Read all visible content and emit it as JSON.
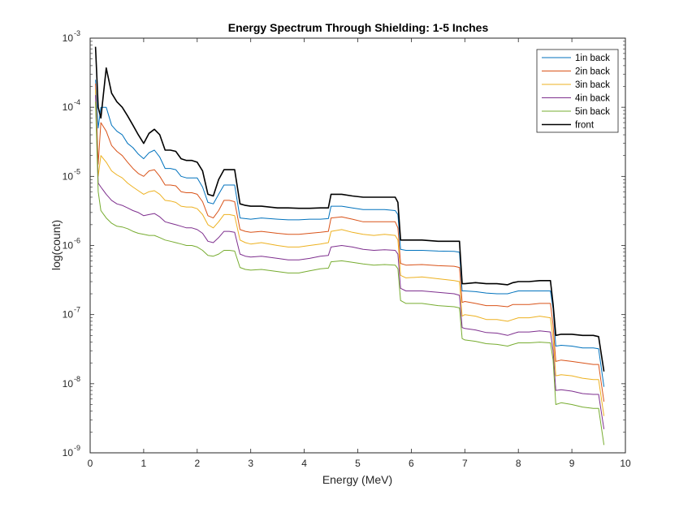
{
  "chart_data": {
    "type": "line",
    "title": "Energy Spectrum Through Shielding: 1-5 Inches",
    "xlabel": "Energy (MeV)",
    "ylabel": "log(count)",
    "xlim": [
      0,
      10
    ],
    "ylim": [
      1e-09,
      0.001
    ],
    "yscale": "log",
    "grid": false,
    "legend_position": "top-right",
    "x_ticks": [
      "0",
      "1",
      "2",
      "3",
      "4",
      "5",
      "6",
      "7",
      "8",
      "9",
      "10"
    ],
    "y_ticks": [
      {
        "base": "10",
        "exp": "-9"
      },
      {
        "base": "10",
        "exp": "-8"
      },
      {
        "base": "10",
        "exp": "-7"
      },
      {
        "base": "10",
        "exp": "-6"
      },
      {
        "base": "10",
        "exp": "-5"
      },
      {
        "base": "10",
        "exp": "-4"
      },
      {
        "base": "10",
        "exp": "-3"
      }
    ],
    "series": [
      {
        "name": "1in back",
        "color": "#0072BD",
        "x": [
          0.1,
          0.15,
          0.2,
          0.3,
          0.4,
          0.5,
          0.6,
          0.7,
          0.8,
          0.9,
          1.0,
          1.1,
          1.2,
          1.3,
          1.4,
          1.5,
          1.6,
          1.7,
          1.8,
          1.9,
          2.0,
          2.1,
          2.2,
          2.3,
          2.4,
          2.5,
          2.6,
          2.7,
          2.8,
          2.9,
          3.0,
          3.2,
          3.5,
          3.7,
          3.9,
          4.1,
          4.3,
          4.45,
          4.5,
          4.7,
          4.9,
          5.1,
          5.3,
          5.5,
          5.7,
          5.75,
          5.8,
          5.9,
          6.2,
          6.5,
          6.8,
          6.9,
          6.95,
          7.0,
          7.2,
          7.4,
          7.6,
          7.8,
          7.9,
          8.0,
          8.2,
          8.4,
          8.6,
          8.65,
          8.7,
          8.8,
          9.0,
          9.2,
          9.4,
          9.5,
          9.6
        ],
        "y": [
          0.00025,
          5e-05,
          0.0001,
          0.0001,
          5.5e-05,
          4.5e-05,
          4e-05,
          3e-05,
          2.6e-05,
          2.1e-05,
          1.8e-05,
          2.2e-05,
          2.4e-05,
          1.9e-05,
          1.3e-05,
          1.3e-05,
          1.25e-05,
          1e-05,
          9.5e-06,
          9.5e-06,
          9.5e-06,
          7e-06,
          4.2e-06,
          4e-06,
          5.5e-06,
          7.5e-06,
          7.5e-06,
          7.5e-06,
          2.5e-06,
          2.45e-06,
          2.4e-06,
          2.5e-06,
          2.4e-06,
          2.35e-06,
          2.35e-06,
          2.4e-06,
          2.4e-06,
          2.45e-06,
          3.7e-06,
          3.7e-06,
          3.5e-06,
          3.3e-06,
          3.3e-06,
          3.3e-06,
          3.2e-06,
          2.8e-06,
          8.8e-07,
          8.5e-07,
          8.5e-07,
          8.3e-07,
          8.2e-07,
          8e-07,
          2.2e-07,
          2.2e-07,
          2.15e-07,
          2.05e-07,
          2e-07,
          2e-07,
          2.1e-07,
          2.2e-07,
          2.2e-07,
          2.2e-07,
          2.2e-07,
          1.2e-07,
          3.5e-08,
          3.6e-08,
          3.5e-08,
          3.3e-08,
          3.3e-08,
          3.2e-08,
          9e-09
        ]
      },
      {
        "name": "2in back",
        "color": "#D95319",
        "x": [
          0.1,
          0.15,
          0.2,
          0.3,
          0.4,
          0.5,
          0.6,
          0.7,
          0.8,
          0.9,
          1.0,
          1.1,
          1.2,
          1.3,
          1.4,
          1.5,
          1.6,
          1.7,
          1.8,
          1.9,
          2.0,
          2.1,
          2.2,
          2.3,
          2.4,
          2.5,
          2.6,
          2.7,
          2.8,
          2.9,
          3.0,
          3.2,
          3.5,
          3.7,
          3.9,
          4.1,
          4.3,
          4.45,
          4.5,
          4.7,
          4.9,
          5.1,
          5.3,
          5.5,
          5.7,
          5.75,
          5.8,
          5.9,
          6.2,
          6.5,
          6.8,
          6.9,
          6.95,
          7.0,
          7.2,
          7.4,
          7.6,
          7.8,
          7.9,
          8.0,
          8.2,
          8.4,
          8.6,
          8.65,
          8.7,
          8.8,
          9.0,
          9.2,
          9.4,
          9.5,
          9.6
        ],
        "y": [
          0.00022,
          1.5e-05,
          6e-05,
          4.5e-05,
          2.8e-05,
          2.3e-05,
          2e-05,
          1.6e-05,
          1.3e-05,
          1.1e-05,
          1e-05,
          1.2e-05,
          1.25e-05,
          1e-05,
          7.5e-06,
          7.5e-06,
          7.3e-06,
          6e-06,
          5.8e-06,
          5.8e-06,
          5.5e-06,
          4.3e-06,
          2.7e-06,
          2.5e-06,
          3.2e-06,
          4.5e-06,
          4.5e-06,
          4.3e-06,
          1.7e-06,
          1.6e-06,
          1.55e-06,
          1.6e-06,
          1.5e-06,
          1.45e-06,
          1.45e-06,
          1.5e-06,
          1.55e-06,
          1.6e-06,
          2.5e-06,
          2.6e-06,
          2.4e-06,
          2.2e-06,
          2.2e-06,
          2.2e-06,
          2.2e-06,
          1.8e-06,
          5.5e-07,
          5.2e-07,
          5.3e-07,
          5.1e-07,
          5e-07,
          4.8e-07,
          1.5e-07,
          1.55e-07,
          1.45e-07,
          1.35e-07,
          1.35e-07,
          1.3e-07,
          1.4e-07,
          1.4e-07,
          1.4e-07,
          1.45e-07,
          1.45e-07,
          7e-08,
          2.1e-08,
          2.2e-08,
          2.1e-08,
          2e-08,
          1.9e-08,
          1.9e-08,
          5.5e-09
        ]
      },
      {
        "name": "3in back",
        "color": "#EDB120",
        "x": [
          0.1,
          0.15,
          0.2,
          0.3,
          0.4,
          0.5,
          0.6,
          0.7,
          0.8,
          0.9,
          1.0,
          1.1,
          1.2,
          1.3,
          1.4,
          1.5,
          1.6,
          1.7,
          1.8,
          1.9,
          2.0,
          2.1,
          2.2,
          2.3,
          2.4,
          2.5,
          2.6,
          2.7,
          2.8,
          2.9,
          3.0,
          3.2,
          3.5,
          3.7,
          3.9,
          4.1,
          4.3,
          4.45,
          4.5,
          4.7,
          4.9,
          5.1,
          5.3,
          5.5,
          5.7,
          5.75,
          5.8,
          5.9,
          6.2,
          6.5,
          6.8,
          6.9,
          6.95,
          7.0,
          7.2,
          7.4,
          7.6,
          7.8,
          7.9,
          8.0,
          8.2,
          8.4,
          8.6,
          8.65,
          8.7,
          8.8,
          9.0,
          9.2,
          9.4,
          9.5,
          9.6
        ],
        "y": [
          0.00018,
          1e-05,
          2e-05,
          1.6e-05,
          1.2e-05,
          1.05e-05,
          9.5e-06,
          8e-06,
          7e-06,
          6.2e-06,
          5.5e-06,
          6e-06,
          6.2e-06,
          5.5e-06,
          4.5e-06,
          4.4e-06,
          4.2e-06,
          3.7e-06,
          3.6e-06,
          3.6e-06,
          3.4e-06,
          2.8e-06,
          2e-06,
          1.8e-06,
          2.2e-06,
          2.8e-06,
          2.8e-06,
          2.7e-06,
          1.2e-06,
          1.1e-06,
          1.05e-06,
          1.1e-06,
          1e-06,
          9.5e-07,
          9.5e-07,
          1e-06,
          1.05e-06,
          1.1e-06,
          1.6e-06,
          1.7e-06,
          1.55e-06,
          1.45e-06,
          1.4e-06,
          1.45e-06,
          1.4e-06,
          1.2e-06,
          3.7e-07,
          3.4e-07,
          3.5e-07,
          3.3e-07,
          3.1e-07,
          3e-07,
          9.5e-08,
          1e-07,
          9.5e-08,
          8.5e-08,
          8.5e-08,
          8e-08,
          8.5e-08,
          9e-08,
          9e-08,
          9.5e-08,
          9e-08,
          4.5e-08,
          1.3e-08,
          1.35e-08,
          1.3e-08,
          1.2e-08,
          1.15e-08,
          1.15e-08,
          3.4e-09
        ]
      },
      {
        "name": "4in back",
        "color": "#7E2F8E",
        "x": [
          0.1,
          0.15,
          0.2,
          0.3,
          0.4,
          0.5,
          0.6,
          0.7,
          0.8,
          0.9,
          1.0,
          1.1,
          1.2,
          1.3,
          1.4,
          1.5,
          1.6,
          1.7,
          1.8,
          1.9,
          2.0,
          2.1,
          2.2,
          2.3,
          2.4,
          2.5,
          2.6,
          2.7,
          2.8,
          2.9,
          3.0,
          3.2,
          3.5,
          3.7,
          3.9,
          4.1,
          4.3,
          4.45,
          4.5,
          4.7,
          4.9,
          5.1,
          5.3,
          5.5,
          5.7,
          5.75,
          5.8,
          5.9,
          6.2,
          6.5,
          6.8,
          6.9,
          6.95,
          7.0,
          7.2,
          7.4,
          7.6,
          7.8,
          7.9,
          8.0,
          8.2,
          8.4,
          8.6,
          8.65,
          8.7,
          8.8,
          9.0,
          9.2,
          9.4,
          9.5,
          9.6
        ],
        "y": [
          0.00015,
          8e-06,
          7e-06,
          5.5e-06,
          4.5e-06,
          4e-06,
          3.8e-06,
          3.5e-06,
          3.2e-06,
          3e-06,
          2.7e-06,
          2.8e-06,
          2.9e-06,
          2.6e-06,
          2.2e-06,
          2.1e-06,
          2e-06,
          1.9e-06,
          1.8e-06,
          1.8e-06,
          1.7e-06,
          1.5e-06,
          1.15e-06,
          1.1e-06,
          1.3e-06,
          1.6e-06,
          1.6e-06,
          1.55e-06,
          7.5e-07,
          7e-07,
          6.8e-07,
          7e-07,
          6.5e-07,
          6.2e-07,
          6.2e-07,
          6.5e-07,
          7e-07,
          7.2e-07,
          9.5e-07,
          1e-06,
          9.5e-07,
          8.8e-07,
          8.5e-07,
          8.7e-07,
          8.5e-07,
          7.5e-07,
          2.4e-07,
          2.2e-07,
          2.2e-07,
          2.1e-07,
          2e-07,
          1.9e-07,
          6.5e-08,
          6.3e-08,
          6e-08,
          5.5e-08,
          5.4e-08,
          5e-08,
          5.3e-08,
          5.6e-08,
          5.6e-08,
          5.8e-08,
          5.6e-08,
          3e-08,
          8e-09,
          8.2e-09,
          7.8e-09,
          7.2e-09,
          7e-09,
          7e-09,
          2.2e-09
        ]
      },
      {
        "name": "5in back",
        "color": "#77AC30",
        "x": [
          0.1,
          0.15,
          0.2,
          0.3,
          0.4,
          0.5,
          0.6,
          0.7,
          0.8,
          0.9,
          1.0,
          1.1,
          1.2,
          1.3,
          1.4,
          1.5,
          1.6,
          1.7,
          1.8,
          1.9,
          2.0,
          2.1,
          2.2,
          2.3,
          2.4,
          2.5,
          2.6,
          2.7,
          2.8,
          2.9,
          3.0,
          3.2,
          3.5,
          3.7,
          3.9,
          4.1,
          4.3,
          4.45,
          4.5,
          4.7,
          4.9,
          5.1,
          5.3,
          5.5,
          5.7,
          5.75,
          5.8,
          5.9,
          6.2,
          6.5,
          6.8,
          6.9,
          6.95,
          7.0,
          7.2,
          7.4,
          7.6,
          7.8,
          7.9,
          8.0,
          8.2,
          8.4,
          8.6,
          8.65,
          8.7,
          8.8,
          9.0,
          9.2,
          9.4,
          9.5,
          9.6
        ],
        "y": [
          0.00012,
          6e-06,
          3.2e-06,
          2.5e-06,
          2.1e-06,
          1.9e-06,
          1.85e-06,
          1.75e-06,
          1.6e-06,
          1.5e-06,
          1.45e-06,
          1.4e-06,
          1.4e-06,
          1.3e-06,
          1.2e-06,
          1.15e-06,
          1.1e-06,
          1.05e-06,
          1e-06,
          1e-06,
          9.5e-07,
          8.5e-07,
          7.2e-07,
          7e-07,
          7.5e-07,
          8.5e-07,
          8.5e-07,
          8.3e-07,
          4.8e-07,
          4.5e-07,
          4.4e-07,
          4.5e-07,
          4.2e-07,
          4e-07,
          4e-07,
          4.3e-07,
          4.6e-07,
          4.7e-07,
          5.8e-07,
          6e-07,
          5.7e-07,
          5.4e-07,
          5.2e-07,
          5.3e-07,
          5.2e-07,
          4.6e-07,
          1.6e-07,
          1.45e-07,
          1.45e-07,
          1.35e-07,
          1.3e-07,
          1.25e-07,
          4.5e-08,
          4.3e-08,
          4.1e-08,
          3.8e-08,
          3.7e-08,
          3.5e-08,
          3.7e-08,
          3.9e-08,
          3.9e-08,
          4e-08,
          3.9e-08,
          2.2e-08,
          5e-09,
          5.3e-09,
          5e-09,
          4.6e-09,
          4.4e-09,
          4.4e-09,
          1.3e-09
        ]
      },
      {
        "name": "front",
        "color": "#000000",
        "x": [
          0.1,
          0.15,
          0.2,
          0.3,
          0.4,
          0.5,
          0.6,
          0.7,
          0.8,
          0.9,
          1.0,
          1.1,
          1.2,
          1.3,
          1.4,
          1.5,
          1.6,
          1.7,
          1.8,
          1.9,
          2.0,
          2.1,
          2.2,
          2.3,
          2.4,
          2.5,
          2.6,
          2.7,
          2.8,
          2.9,
          3.0,
          3.2,
          3.5,
          3.7,
          3.9,
          4.1,
          4.3,
          4.45,
          4.5,
          4.7,
          4.9,
          5.1,
          5.3,
          5.5,
          5.7,
          5.75,
          5.8,
          5.9,
          6.2,
          6.5,
          6.8,
          6.9,
          6.95,
          7.0,
          7.2,
          7.4,
          7.6,
          7.8,
          7.9,
          8.0,
          8.2,
          8.4,
          8.6,
          8.65,
          8.7,
          8.8,
          9.0,
          9.2,
          9.4,
          9.5,
          9.6
        ],
        "y": [
          0.00075,
          0.0001,
          7e-05,
          0.00037,
          0.00016,
          0.00012,
          0.0001,
          7.5e-05,
          5.5e-05,
          4e-05,
          3e-05,
          4.2e-05,
          4.8e-05,
          4e-05,
          2.4e-05,
          2.4e-05,
          2.3e-05,
          1.8e-05,
          1.7e-05,
          1.7e-05,
          1.6e-05,
          1.2e-05,
          5.5e-06,
          5.2e-06,
          9e-06,
          1.25e-05,
          1.25e-05,
          1.25e-05,
          4e-06,
          3.8e-06,
          3.7e-06,
          3.7e-06,
          3.5e-06,
          3.5e-06,
          3.45e-06,
          3.45e-06,
          3.5e-06,
          3.5e-06,
          5.5e-06,
          5.5e-06,
          5.2e-06,
          5e-06,
          5e-06,
          5e-06,
          5e-06,
          4.2e-06,
          1.2e-06,
          1.2e-06,
          1.2e-06,
          1.15e-06,
          1.15e-06,
          1.15e-06,
          2.8e-07,
          2.8e-07,
          2.9e-07,
          2.8e-07,
          2.8e-07,
          2.7e-07,
          2.9e-07,
          3e-07,
          3e-07,
          3.1e-07,
          3.1e-07,
          1.4e-07,
          5e-08,
          5.2e-08,
          5.2e-08,
          5e-08,
          5e-08,
          4.8e-08,
          1.5e-08
        ]
      }
    ]
  }
}
